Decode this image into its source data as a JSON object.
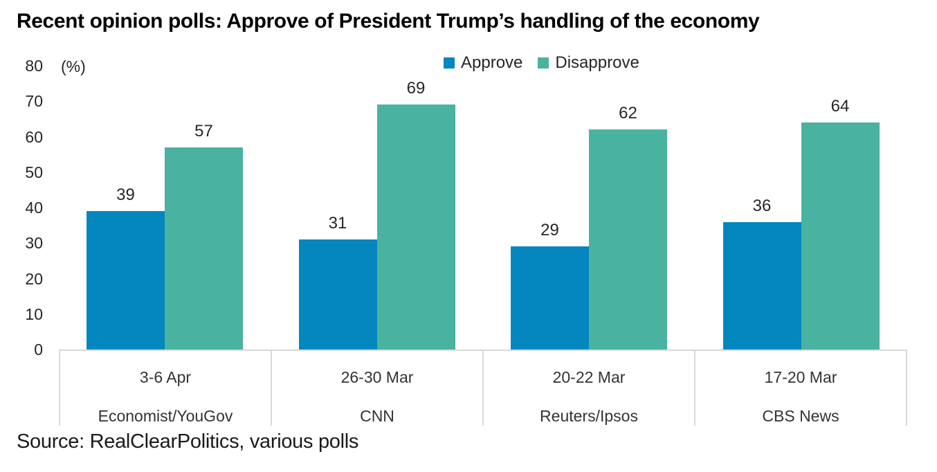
{
  "page": {
    "title": "Recent opinion polls: Approve of President Trump’s handling of the economy",
    "source": "Source: RealClearPolitics, various polls"
  },
  "axis": {
    "unit_label": "(%)",
    "ticks": [
      80,
      70,
      60,
      50,
      40,
      30,
      20,
      10,
      0
    ]
  },
  "colors": {
    "approve": "#0487be",
    "disapprove": "#4ab2a0",
    "band_border": "#d9d9d9",
    "text": "#262626"
  },
  "legend": {
    "items": [
      {
        "label": "Approve",
        "color": "#0487be"
      },
      {
        "label": "Disapprove",
        "color": "#4ab2a0"
      }
    ]
  },
  "chart_data": {
    "type": "bar",
    "title": "Recent opinion polls: Approve of President Trump’s handling of the economy",
    "unit": "%",
    "ylim": [
      0,
      80
    ],
    "yticks": [
      0,
      10,
      20,
      30,
      40,
      50,
      60,
      70,
      80
    ],
    "grid": false,
    "legend_position": "top-center",
    "data_labels": true,
    "categories": [
      {
        "date": "3-6 Apr",
        "pollster": "Economist/YouGov"
      },
      {
        "date": "26-30 Mar",
        "pollster": "CNN"
      },
      {
        "date": "20-22 Mar",
        "pollster": "Reuters/Ipsos"
      },
      {
        "date": "17-20 Mar",
        "pollster": "CBS News"
      }
    ],
    "series": [
      {
        "name": "Approve",
        "color": "#0487be",
        "values": [
          39,
          31,
          29,
          36
        ]
      },
      {
        "name": "Disapprove",
        "color": "#4ab2a0",
        "values": [
          57,
          69,
          62,
          64
        ]
      }
    ],
    "source": "Source: RealClearPolitics, various polls"
  }
}
